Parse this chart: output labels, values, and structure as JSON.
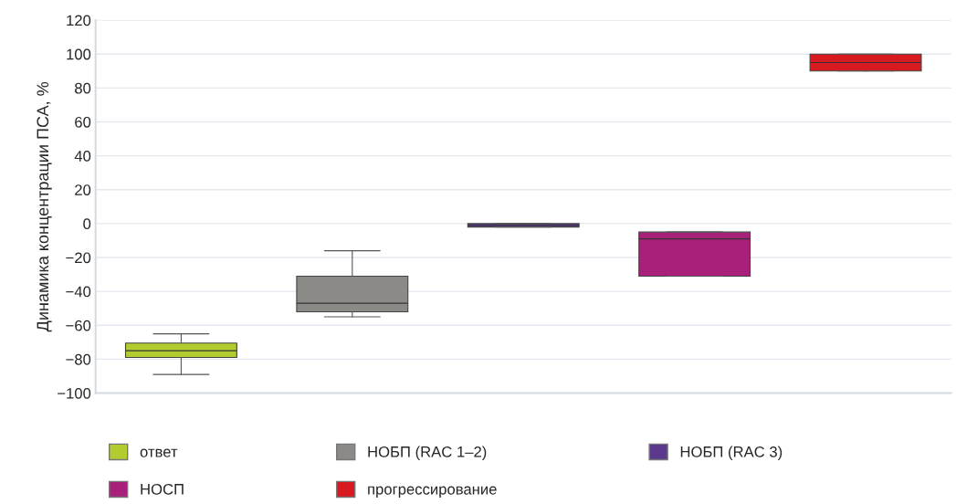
{
  "chart_data": {
    "type": "box",
    "ylabel": "Динамика концентрации ПСА, %",
    "categories": [
      null,
      null,
      null,
      null,
      null
    ],
    "series": [
      {
        "name": "ответ",
        "color": "#b2cc30",
        "boxes": [
          {
            "low": -89,
            "q1": -79,
            "median": -75,
            "q3": -70.5,
            "high": -65
          },
          null,
          null,
          null,
          null
        ]
      },
      {
        "name": "НОБП (RAC 1–2)",
        "color": "#8c8a86",
        "boxes": [
          null,
          {
            "low": -55,
            "q1": -52,
            "median": -47,
            "q3": -31,
            "high": -16
          },
          null,
          null,
          null
        ]
      },
      {
        "name": "НОБП (RAC 3)",
        "color": "#5b3a8e",
        "boxes": [
          null,
          null,
          {
            "low": -2,
            "q1": -2,
            "median": -1,
            "q3": 0,
            "high": 0
          },
          null,
          null
        ]
      },
      {
        "name": "НОСП",
        "color": "#a8207a",
        "boxes": [
          null,
          null,
          null,
          {
            "low": -31,
            "q1": -31,
            "median": -9,
            "q3": -5,
            "high": -5
          },
          null
        ]
      },
      {
        "name": "прогрессирование",
        "color": "#d71920",
        "boxes": [
          null,
          null,
          null,
          null,
          {
            "low": 90,
            "q1": 90,
            "median": 95,
            "q3": 100,
            "high": 100
          }
        ]
      }
    ],
    "ylim": [
      -100,
      120
    ],
    "yticks": [
      {
        "value": -100,
        "label": "−100"
      },
      {
        "value": -80,
        "label": "−80"
      },
      {
        "value": -60,
        "label": "−60"
      },
      {
        "value": -40,
        "label": "−40"
      },
      {
        "value": -20,
        "label": "−20"
      },
      0,
      20,
      40,
      60,
      80,
      100,
      120
    ],
    "grid": "y",
    "legend": "bottom"
  }
}
